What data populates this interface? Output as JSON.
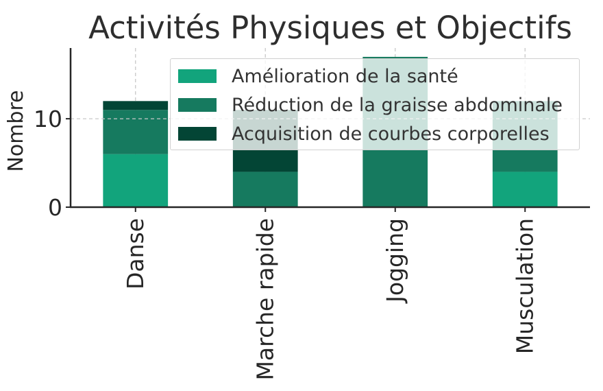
{
  "chart_data": {
    "type": "bar",
    "stacked": true,
    "title": "Activités Physiques et Objectifs",
    "xlabel": "",
    "ylabel": "Nombre",
    "categories": [
      "Danse",
      "Marche rapide",
      "Jogging",
      "Musculation"
    ],
    "series": [
      {
        "name": "Amélioration de la santé",
        "color": "#12a47c",
        "values": [
          6,
          0,
          0,
          4
        ]
      },
      {
        "name": "Réduction de la graisse abdominale",
        "color": "#167a5f",
        "values": [
          5,
          4,
          17,
          8
        ]
      },
      {
        "name": "Acquisition de courbes corporelles",
        "color": "#034535",
        "values": [
          1,
          7,
          0,
          0
        ]
      }
    ],
    "ylim": [
      0,
      18
    ],
    "yticks": [
      0,
      10
    ],
    "grid": true,
    "legend_position": "top-right"
  }
}
